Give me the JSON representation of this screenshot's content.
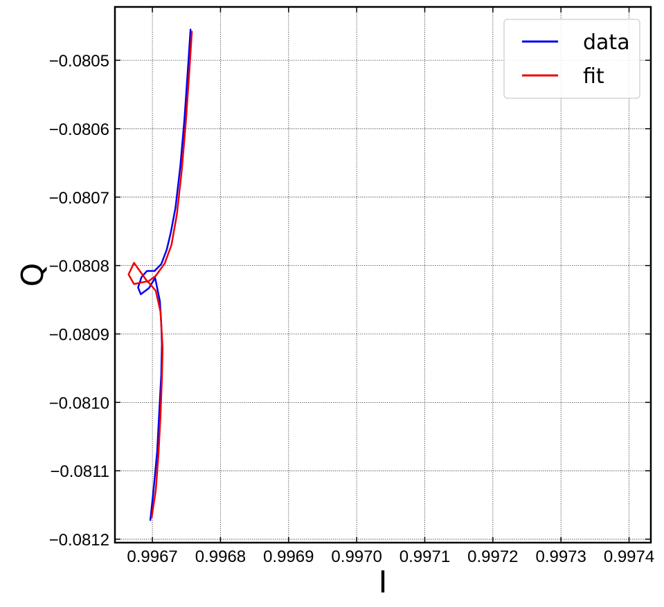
{
  "chart_data": {
    "type": "line",
    "xlabel": "I",
    "ylabel": "Q",
    "xlim": [
      0.996645,
      0.997432
    ],
    "ylim": [
      -0.081205,
      -0.080422
    ],
    "grid": true,
    "legend_position": "top-right",
    "x_ticks": [
      0.9967,
      0.9968,
      0.9969,
      0.997,
      0.9971,
      0.9972,
      0.9973,
      0.9974
    ],
    "x_tick_labels": [
      "0.9967",
      "0.9968",
      "0.9969",
      "0.9970",
      "0.9971",
      "0.9972",
      "0.9973",
      "0.9974"
    ],
    "y_ticks": [
      -0.0805,
      -0.0806,
      -0.0807,
      -0.0808,
      -0.0809,
      -0.081,
      -0.0811,
      -0.0812
    ],
    "y_tick_labels": [
      "−0.0805",
      "−0.0806",
      "−0.0807",
      "−0.0808",
      "−0.0809",
      "−0.0810",
      "−0.0811",
      "−0.0812"
    ],
    "series": [
      {
        "name": "data",
        "color": "#0000ee",
        "x": [
          0.996756,
          0.996752,
          0.996747,
          0.996741,
          0.996734,
          0.996727,
          0.996721,
          0.996713,
          0.996703,
          0.996692,
          0.996684,
          0.996679,
          0.996683,
          0.996695,
          0.996704,
          0.996711,
          0.996713,
          0.996714,
          0.996713,
          0.99671,
          0.996707,
          0.996702,
          0.996697
        ],
        "y": [
          -0.080455,
          -0.080515,
          -0.080587,
          -0.080655,
          -0.080715,
          -0.080752,
          -0.080777,
          -0.080798,
          -0.080808,
          -0.080808,
          -0.080817,
          -0.080832,
          -0.080842,
          -0.080833,
          -0.080818,
          -0.080852,
          -0.080885,
          -0.080915,
          -0.08096,
          -0.081015,
          -0.081072,
          -0.081125,
          -0.081172
        ]
      },
      {
        "name": "fit",
        "color": "#ee0000",
        "x": [
          0.996758,
          0.996754,
          0.996749,
          0.996743,
          0.996736,
          0.996728,
          0.996718,
          0.996705,
          0.996693,
          0.996673,
          0.996665,
          0.996673,
          0.996693,
          0.996705,
          0.996712,
          0.996715,
          0.996714,
          0.996712,
          0.996709,
          0.996705,
          0.996699
        ],
        "y": [
          -0.080458,
          -0.08052,
          -0.080592,
          -0.080662,
          -0.080725,
          -0.08077,
          -0.080797,
          -0.080815,
          -0.080824,
          -0.080796,
          -0.080813,
          -0.080827,
          -0.080823,
          -0.080837,
          -0.080868,
          -0.08092,
          -0.080965,
          -0.081018,
          -0.081075,
          -0.081128,
          -0.081168
        ]
      }
    ]
  }
}
